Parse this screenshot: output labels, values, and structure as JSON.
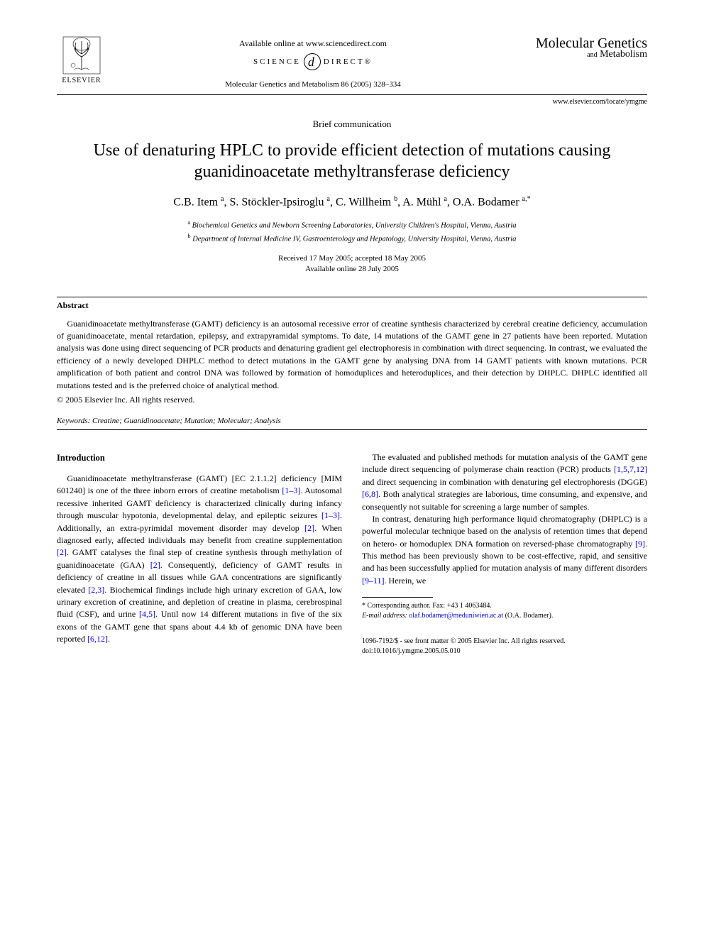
{
  "header": {
    "publisher_name": "ELSEVIER",
    "available_online": "Available online at www.sciencedirect.com",
    "science_direct_left": "SCIENCE",
    "science_direct_right": "DIRECT®",
    "citation": "Molecular Genetics and Metabolism 86 (2005) 328–334",
    "journal_line1": "Molecular Genetics",
    "journal_line2_and": "and",
    "journal_line2": " Metabolism",
    "journal_url": "www.elsevier.com/locate/ymgme"
  },
  "article": {
    "type": "Brief communication",
    "title": "Use of denaturing HPLC to provide efficient detection of mutations causing guanidinoacetate methyltransferase deficiency",
    "authors_html": "C.B. Item <sup>a</sup>, S. Stöckler-Ipsiroglu <sup>a</sup>, C. Willheim <sup>b</sup>, A. Mühl <sup>a</sup>, O.A. Bodamer <sup>a,*</sup>",
    "affiliation_a": "Biochemical Genetics and Newborn Screening Laboratories, University Children's Hospital, Vienna, Austria",
    "affiliation_b": "Department of Internal Medicine IV, Gastroenterology and Hepatology, University Hospital, Vienna, Austria",
    "received": "Received 17 May 2005; accepted 18 May 2005",
    "available": "Available online 28 July 2005"
  },
  "abstract": {
    "heading": "Abstract",
    "text": "Guanidinoacetate methyltransferase (GAMT) deficiency is an autosomal recessive error of creatine synthesis characterized by cerebral creatine deficiency, accumulation of guanidinoacetate, mental retardation, epilepsy, and extrapyramidal symptoms. To date, 14 mutations of the GAMT gene in 27 patients have been reported. Mutation analysis was done using direct sequencing of PCR products and denaturing gradient gel electrophoresis in combination with direct sequencing. In contrast, we evaluated the efficiency of a newly developed DHPLC method to detect mutations in the GAMT gene by analysing DNA from 14 GAMT patients with known mutations. PCR amplification of both patient and control DNA was followed by formation of homoduplices and heteroduplices, and their detection by DHPLC. DHPLC identified all mutations tested and is the preferred choice of analytical method.",
    "copyright": "© 2005 Elsevier Inc. All rights reserved.",
    "keywords_label": "Keywords:",
    "keywords": " Creatine; Guanidinoacetate; Mutation; Molecular; Analysis"
  },
  "body": {
    "intro_heading": "Introduction",
    "para1_a": "Guanidinoacetate methyltransferase (GAMT) [EC 2.1.1.2] deficiency [MIM 601240] is one of the three inborn errors of creatine metabolism ",
    "ref1": "[1–3]",
    "para1_b": ". Autosomal recessive inherited GAMT deficiency is characterized clinically during infancy through muscular hypotonia, developmental delay, and epileptic seizures ",
    "ref2": "[1–3]",
    "para1_c": ". Additionally, an extra-pyrimidal movement disorder may develop ",
    "ref3": "[2]",
    "para1_d": ". When diagnosed early, affected individuals may benefit from creatine supplementation ",
    "ref4": "[2]",
    "para1_e": ". GAMT catalyses the final step of creatine synthesis through methylation of guanidinoacetate (GAA) ",
    "ref5": "[2]",
    "para1_f": ". Consequently, deficiency of GAMT results in deficiency of creatine in all tissues while GAA concentrations are significantly elevated ",
    "ref6": "[2,3]",
    "para1_g": ". Biochemical findings include high urinary excretion of GAA, low urinary excretion of creatinine, and depletion of crea",
    "para1_h": "tine in plasma, cerebrospinal fluid (CSF), and urine ",
    "ref7": "[4,5]",
    "para1_i": ". Until now 14 different mutations in five of the six exons of the GAMT gene that spans about 4.4 kb of genomic DNA have been reported ",
    "ref8": "[6,12]",
    "para1_j": ".",
    "para2_a": "The evaluated and published methods for mutation analysis of the GAMT gene include direct sequencing of polymerase chain reaction (PCR) products ",
    "ref9": "[1,5,7,12]",
    "para2_b": " and direct sequencing in combination with denaturing gel electrophoresis (DGGE) ",
    "ref10": "[6,8]",
    "para2_c": ". Both analytical strategies are laborious, time consuming, and expensive, and consequently not suitable for screening a large number of samples.",
    "para3_a": "In contrast, denaturing high performance liquid chromatography (DHPLC) is a powerful molecular technique based on the analysis of retention times that depend on hetero- or homoduplex DNA formation on reversed-phase chromatography ",
    "ref11": "[9]",
    "para3_b": ". This method has been previously shown to be cost-effective, rapid, and sensitive and has been successfully applied for mutation analysis of many different disorders ",
    "ref12": "[9–11]",
    "para3_c": ". Herein, we"
  },
  "footnote": {
    "corresponding": "* Corresponding author. Fax: +43 1 4063484.",
    "email_label": "E-mail address:",
    "email": "olaf.bodamer@meduniwien.ac.at",
    "email_suffix": " (O.A. Bodamer)."
  },
  "footer": {
    "issn": "1096-7192/$ - see front matter © 2005 Elsevier Inc. All rights reserved.",
    "doi": "doi:10.1016/j.ymgme.2005.05.010"
  },
  "colors": {
    "text": "#000000",
    "background": "#ffffff",
    "link": "#0000cc"
  }
}
